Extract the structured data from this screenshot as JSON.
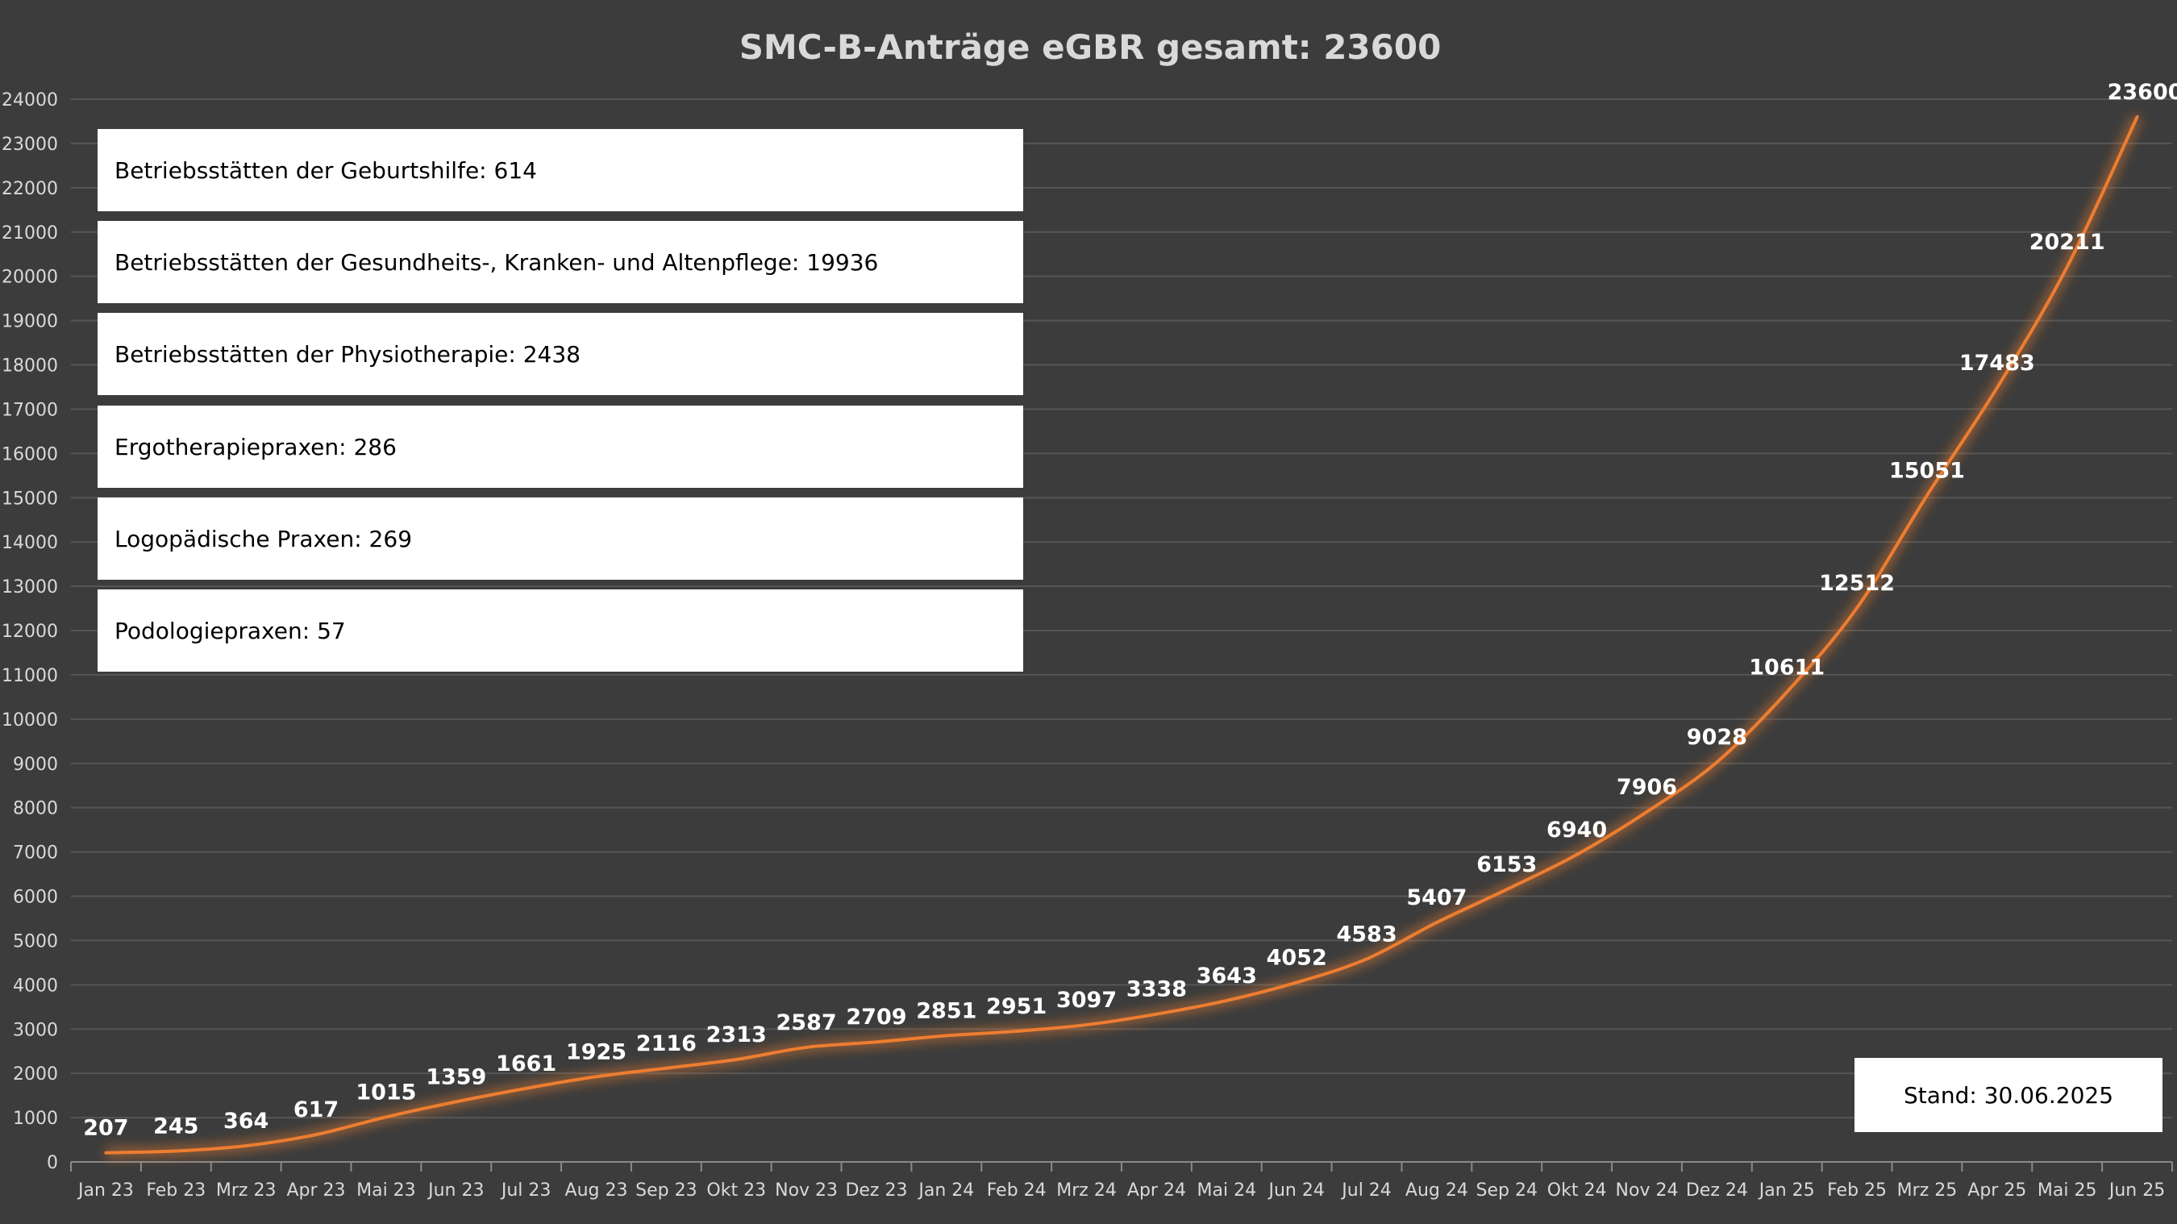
{
  "chart_data": {
    "type": "line",
    "title": "SMC-B-Anträge eGBR gesamt: 23600",
    "xlabel": "",
    "ylabel": "",
    "ylim": [
      0,
      24000
    ],
    "yticks": [
      0,
      1000,
      2000,
      3000,
      4000,
      5000,
      6000,
      7000,
      8000,
      9000,
      10000,
      11000,
      12000,
      13000,
      14000,
      15000,
      16000,
      17000,
      18000,
      19000,
      20000,
      21000,
      22000,
      23000,
      24000
    ],
    "grid": true,
    "categories": [
      "Jan 23",
      "Feb 23",
      "Mrz 23",
      "Apr 23",
      "Mai 23",
      "Jun 23",
      "Jul 23",
      "Aug 23",
      "Sep 23",
      "Okt 23",
      "Nov 23",
      "Dez 23",
      "Jan 24",
      "Feb 24",
      "Mrz 24",
      "Apr 24",
      "Mai 24",
      "Jun 24",
      "Jul 24",
      "Aug 24",
      "Sep 24",
      "Okt 24",
      "Nov 24",
      "Dez 24",
      "Jan 25",
      "Feb 25",
      "Mrz 25",
      "Apr 25",
      "Mai 25",
      "Jun 25"
    ],
    "series": [
      {
        "values": [
          207,
          245,
          364,
          617,
          1015,
          1359,
          1661,
          1925,
          2116,
          2313,
          2587,
          2709,
          2851,
          2951,
          3097,
          3338,
          3643,
          4052,
          4583,
          5407,
          6153,
          6940,
          7906,
          9028,
          10611,
          12512,
          15051,
          17483,
          20211,
          23600
        ],
        "color": "#ed7d31"
      }
    ],
    "annotations": [
      "Betriebsstätten der Geburtshilfe: 614",
      "Betriebsstätten der Gesundheits-, Kranken- und Altenpflege: 19936",
      "Betriebsstätten der Physiotherapie: 2438",
      "Ergotherapiepraxen: 286",
      "Logopädische Praxen: 269",
      "Podologiepraxen: 57"
    ],
    "stand": "Stand: 30.06.2025"
  }
}
